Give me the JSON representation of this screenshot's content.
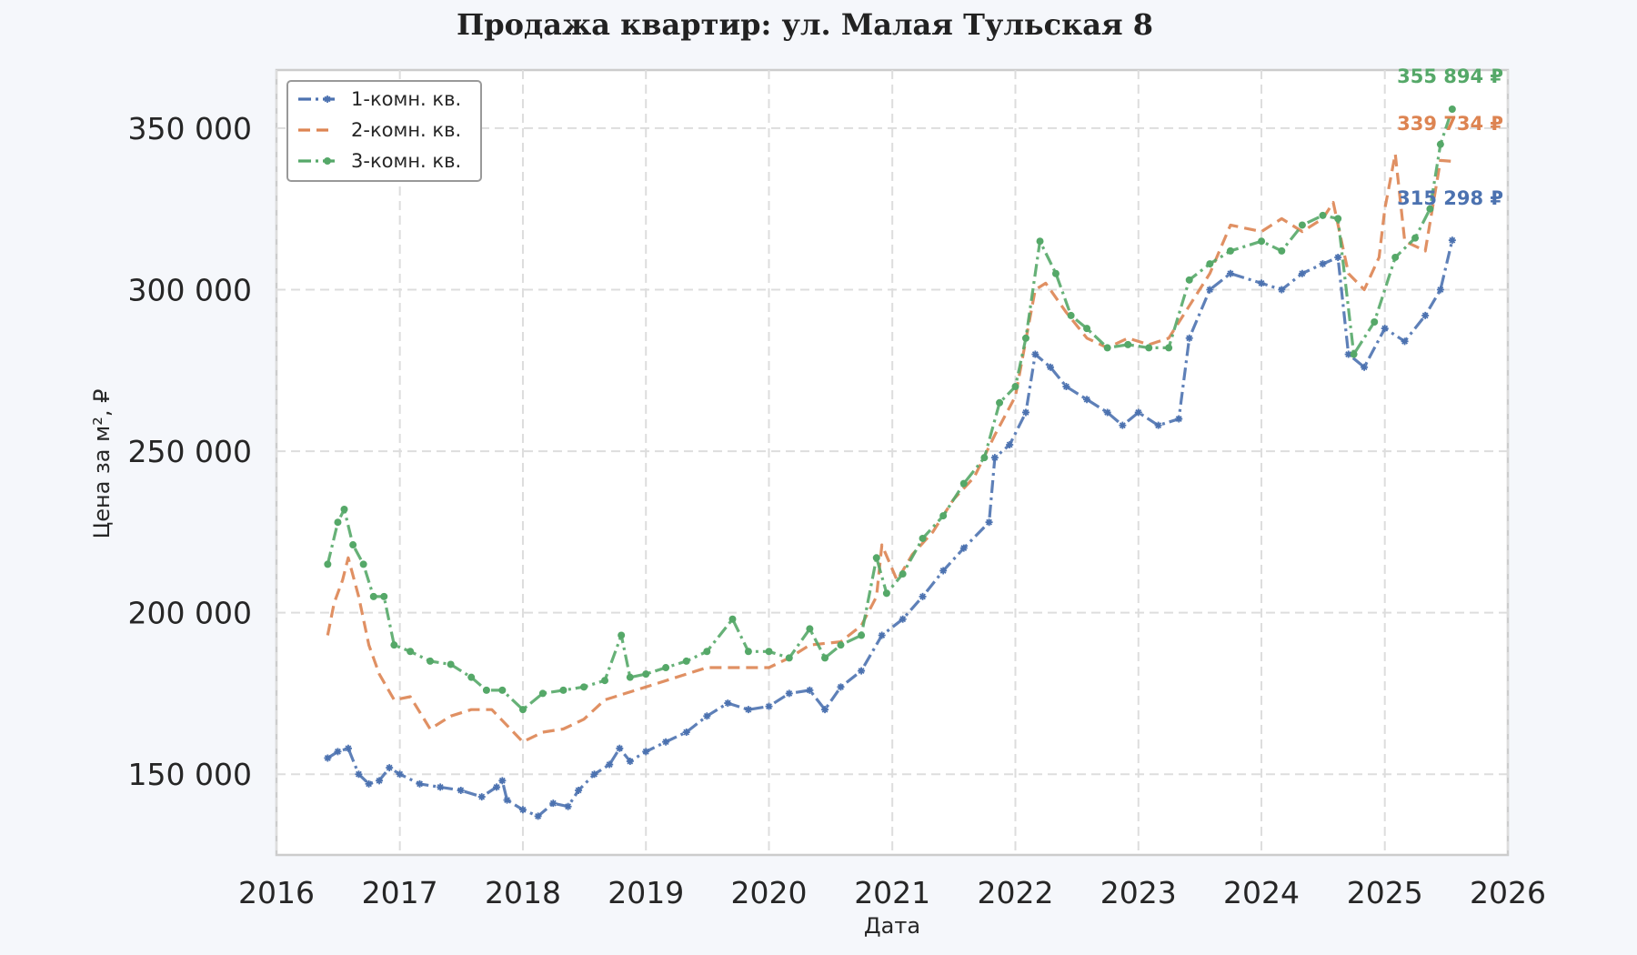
{
  "chart_data": {
    "type": "line",
    "title": "Продажа квартир: ул. Малая Тульская 8",
    "xlabel": "Дата",
    "ylabel": "Цена за м², ₽",
    "xlim": [
      "2016-01-01",
      "2026-01-01"
    ],
    "ylim": [
      125000,
      368000
    ],
    "x_ticks": [
      "2016",
      "2017",
      "2018",
      "2019",
      "2020",
      "2021",
      "2022",
      "2023",
      "2024",
      "2025",
      "2026"
    ],
    "y_ticks": [
      150000,
      200000,
      250000,
      300000,
      350000
    ],
    "y_tick_labels": [
      "150 000",
      "200 000",
      "250 000",
      "300 000",
      "350 000"
    ],
    "grid": true,
    "legend_position": "top-left",
    "series": [
      {
        "name": "1-комн. кв.",
        "color": "#4c72b0",
        "line_style": "dash-dot",
        "marker": "star",
        "end_label": "315 298 ₽",
        "points": [
          [
            "2016-06-01",
            155000
          ],
          [
            "2016-07-01",
            157000
          ],
          [
            "2016-08-01",
            158000
          ],
          [
            "2016-09-01",
            150000
          ],
          [
            "2016-10-01",
            147000
          ],
          [
            "2016-11-01",
            148000
          ],
          [
            "2016-12-01",
            152000
          ],
          [
            "2017-01-01",
            150000
          ],
          [
            "2017-03-01",
            147000
          ],
          [
            "2017-05-01",
            146000
          ],
          [
            "2017-07-01",
            145000
          ],
          [
            "2017-09-01",
            143000
          ],
          [
            "2017-10-15",
            146000
          ],
          [
            "2017-11-01",
            148000
          ],
          [
            "2017-11-15",
            142000
          ],
          [
            "2018-01-01",
            139000
          ],
          [
            "2018-02-15",
            137000
          ],
          [
            "2018-04-01",
            141000
          ],
          [
            "2018-05-15",
            140000
          ],
          [
            "2018-06-15",
            145000
          ],
          [
            "2018-08-01",
            150000
          ],
          [
            "2018-09-15",
            153000
          ],
          [
            "2018-10-15",
            158000
          ],
          [
            "2018-11-15",
            154000
          ],
          [
            "2019-01-01",
            157000
          ],
          [
            "2019-03-01",
            160000
          ],
          [
            "2019-05-01",
            163000
          ],
          [
            "2019-07-01",
            168000
          ],
          [
            "2019-09-01",
            172000
          ],
          [
            "2019-11-01",
            170000
          ],
          [
            "2020-01-01",
            171000
          ],
          [
            "2020-03-01",
            175000
          ],
          [
            "2020-05-01",
            176000
          ],
          [
            "2020-06-15",
            170000
          ],
          [
            "2020-08-01",
            177000
          ],
          [
            "2020-10-01",
            182000
          ],
          [
            "2020-12-01",
            193000
          ],
          [
            "2021-02-01",
            198000
          ],
          [
            "2021-04-01",
            205000
          ],
          [
            "2021-06-01",
            213000
          ],
          [
            "2021-08-01",
            220000
          ],
          [
            "2021-10-15",
            228000
          ],
          [
            "2021-11-01",
            248000
          ],
          [
            "2021-12-15",
            252000
          ],
          [
            "2022-02-01",
            262000
          ],
          [
            "2022-03-01",
            280000
          ],
          [
            "2022-04-15",
            276000
          ],
          [
            "2022-06-01",
            270000
          ],
          [
            "2022-08-01",
            266000
          ],
          [
            "2022-10-01",
            262000
          ],
          [
            "2022-11-15",
            258000
          ],
          [
            "2023-01-01",
            262000
          ],
          [
            "2023-03-01",
            258000
          ],
          [
            "2023-05-01",
            260000
          ],
          [
            "2023-06-01",
            285000
          ],
          [
            "2023-08-01",
            300000
          ],
          [
            "2023-10-01",
            305000
          ],
          [
            "2024-01-01",
            302000
          ],
          [
            "2024-03-01",
            300000
          ],
          [
            "2024-05-01",
            305000
          ],
          [
            "2024-07-01",
            308000
          ],
          [
            "2024-08-15",
            310000
          ],
          [
            "2024-09-15",
            280000
          ],
          [
            "2024-11-01",
            276000
          ],
          [
            "2025-01-01",
            288000
          ],
          [
            "2025-03-01",
            284000
          ],
          [
            "2025-05-01",
            292000
          ],
          [
            "2025-06-15",
            300000
          ],
          [
            "2025-07-20",
            315298
          ]
        ]
      },
      {
        "name": "2-комн. кв.",
        "color": "#dd8452",
        "line_style": "dashed",
        "marker": "none",
        "end_label": "339 734 ₽",
        "points": [
          [
            "2016-06-01",
            193000
          ],
          [
            "2016-06-20",
            203000
          ],
          [
            "2016-07-15",
            210000
          ],
          [
            "2016-08-01",
            217000
          ],
          [
            "2016-09-01",
            205000
          ],
          [
            "2016-10-01",
            190000
          ],
          [
            "2016-11-01",
            181000
          ],
          [
            "2016-12-15",
            173000
          ],
          [
            "2017-02-01",
            174000
          ],
          [
            "2017-04-01",
            164000
          ],
          [
            "2017-06-01",
            168000
          ],
          [
            "2017-08-01",
            170000
          ],
          [
            "2017-10-01",
            170000
          ],
          [
            "2018-01-01",
            160000
          ],
          [
            "2018-03-01",
            163000
          ],
          [
            "2018-05-01",
            164000
          ],
          [
            "2018-07-01",
            167000
          ],
          [
            "2018-09-01",
            173000
          ],
          [
            "2018-11-01",
            175000
          ],
          [
            "2019-01-01",
            177000
          ],
          [
            "2019-04-01",
            180000
          ],
          [
            "2019-07-01",
            183000
          ],
          [
            "2019-10-01",
            183000
          ],
          [
            "2020-01-01",
            183000
          ],
          [
            "2020-03-01",
            186000
          ],
          [
            "2020-05-01",
            190000
          ],
          [
            "2020-08-01",
            191000
          ],
          [
            "2020-10-01",
            196000
          ],
          [
            "2020-11-15",
            205000
          ],
          [
            "2020-12-01",
            221000
          ],
          [
            "2021-01-15",
            210000
          ],
          [
            "2021-03-01",
            218000
          ],
          [
            "2021-05-01",
            225000
          ],
          [
            "2021-07-01",
            235000
          ],
          [
            "2021-09-01",
            242000
          ],
          [
            "2021-11-01",
            255000
          ],
          [
            "2022-01-01",
            267000
          ],
          [
            "2022-03-01",
            300000
          ],
          [
            "2022-04-01",
            302000
          ],
          [
            "2022-06-01",
            293000
          ],
          [
            "2022-08-01",
            285000
          ],
          [
            "2022-10-01",
            282000
          ],
          [
            "2022-12-01",
            285000
          ],
          [
            "2023-02-01",
            283000
          ],
          [
            "2023-04-01",
            285000
          ],
          [
            "2023-06-01",
            295000
          ],
          [
            "2023-08-01",
            305000
          ],
          [
            "2023-10-01",
            320000
          ],
          [
            "2024-01-01",
            318000
          ],
          [
            "2024-03-01",
            322000
          ],
          [
            "2024-05-01",
            318000
          ],
          [
            "2024-07-01",
            322000
          ],
          [
            "2024-08-01",
            327000
          ],
          [
            "2024-09-15",
            305000
          ],
          [
            "2024-11-01",
            300000
          ],
          [
            "2024-12-15",
            310000
          ],
          [
            "2025-01-01",
            325000
          ],
          [
            "2025-02-01",
            342000
          ],
          [
            "2025-03-01",
            315000
          ],
          [
            "2025-05-01",
            312000
          ],
          [
            "2025-06-15",
            340000
          ],
          [
            "2025-07-20",
            339734
          ]
        ]
      },
      {
        "name": "3-комн. кв.",
        "color": "#55a868",
        "line_style": "dash-dot",
        "marker": "dot",
        "end_label": "355 894 ₽",
        "points": [
          [
            "2016-06-01",
            215000
          ],
          [
            "2016-07-01",
            228000
          ],
          [
            "2016-07-20",
            232000
          ],
          [
            "2016-08-15",
            221000
          ],
          [
            "2016-09-15",
            215000
          ],
          [
            "2016-10-15",
            205000
          ],
          [
            "2016-11-15",
            205000
          ],
          [
            "2016-12-15",
            190000
          ],
          [
            "2017-02-01",
            188000
          ],
          [
            "2017-04-01",
            185000
          ],
          [
            "2017-06-01",
            184000
          ],
          [
            "2017-08-01",
            180000
          ],
          [
            "2017-09-15",
            176000
          ],
          [
            "2017-11-01",
            176000
          ],
          [
            "2018-01-01",
            170000
          ],
          [
            "2018-03-01",
            175000
          ],
          [
            "2018-05-01",
            176000
          ],
          [
            "2018-07-01",
            177000
          ],
          [
            "2018-09-01",
            179000
          ],
          [
            "2018-10-20",
            193000
          ],
          [
            "2018-11-15",
            180000
          ],
          [
            "2019-01-01",
            181000
          ],
          [
            "2019-03-01",
            183000
          ],
          [
            "2019-05-01",
            185000
          ],
          [
            "2019-07-01",
            188000
          ],
          [
            "2019-09-15",
            198000
          ],
          [
            "2019-11-01",
            188000
          ],
          [
            "2020-01-01",
            188000
          ],
          [
            "2020-03-01",
            186000
          ],
          [
            "2020-05-01",
            195000
          ],
          [
            "2020-06-15",
            186000
          ],
          [
            "2020-08-01",
            190000
          ],
          [
            "2020-10-01",
            193000
          ],
          [
            "2020-11-15",
            217000
          ],
          [
            "2020-12-15",
            206000
          ],
          [
            "2021-02-01",
            212000
          ],
          [
            "2021-04-01",
            223000
          ],
          [
            "2021-06-01",
            230000
          ],
          [
            "2021-08-01",
            240000
          ],
          [
            "2021-10-01",
            248000
          ],
          [
            "2021-11-15",
            265000
          ],
          [
            "2022-01-01",
            270000
          ],
          [
            "2022-02-01",
            285000
          ],
          [
            "2022-03-15",
            315000
          ],
          [
            "2022-05-01",
            305000
          ],
          [
            "2022-06-15",
            292000
          ],
          [
            "2022-08-01",
            288000
          ],
          [
            "2022-10-01",
            282000
          ],
          [
            "2022-12-01",
            283000
          ],
          [
            "2023-02-01",
            282000
          ],
          [
            "2023-04-01",
            282000
          ],
          [
            "2023-06-01",
            303000
          ],
          [
            "2023-08-01",
            308000
          ],
          [
            "2023-10-01",
            312000
          ],
          [
            "2024-01-01",
            315000
          ],
          [
            "2024-03-01",
            312000
          ],
          [
            "2024-05-01",
            320000
          ],
          [
            "2024-07-01",
            323000
          ],
          [
            "2024-08-15",
            322000
          ],
          [
            "2024-10-01",
            280000
          ],
          [
            "2024-12-01",
            290000
          ],
          [
            "2025-02-01",
            310000
          ],
          [
            "2025-04-01",
            316000
          ],
          [
            "2025-05-15",
            325000
          ],
          [
            "2025-06-15",
            345000
          ],
          [
            "2025-07-20",
            355894
          ]
        ]
      }
    ]
  }
}
